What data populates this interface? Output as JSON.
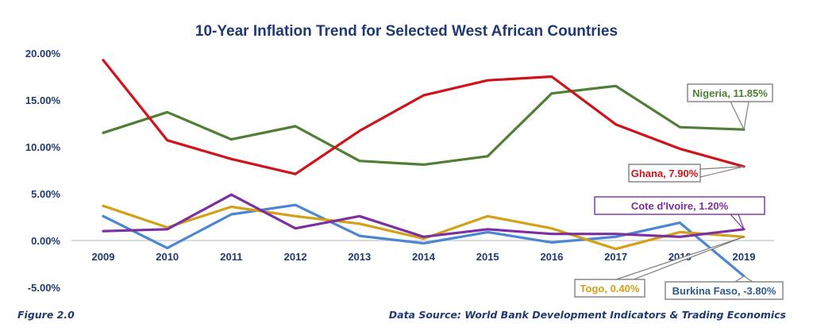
{
  "chart_data": {
    "type": "line",
    "title": "10-Year Inflation Trend for Selected West African Countries",
    "xlabel": "",
    "ylabel": "",
    "categories": [
      "2009",
      "2010",
      "2011",
      "2012",
      "2013",
      "2014",
      "2015",
      "2016",
      "2017",
      "2018",
      "2019"
    ],
    "ylim": [
      -5,
      20
    ],
    "yticks": [
      20,
      15,
      10,
      5,
      0,
      -5
    ],
    "ytick_labels": [
      "20.00%",
      "15.00%",
      "10.00%",
      "5.00%",
      "0.00%",
      "-5.00%"
    ],
    "grid": false,
    "legend": "none (data callouts at last point)",
    "series": [
      {
        "name": "Ghana",
        "color": "#d0121b",
        "values": [
          19.25,
          10.7,
          8.7,
          7.1,
          11.7,
          15.5,
          17.1,
          17.5,
          12.4,
          9.8,
          7.9
        ],
        "callout": "Ghana, 7.90%",
        "callout_border": "#7f7f7f"
      },
      {
        "name": "Nigeria",
        "color": "#4e7f34",
        "values": [
          11.5,
          13.7,
          10.8,
          12.2,
          8.5,
          8.1,
          9.0,
          15.7,
          16.5,
          12.1,
          11.85
        ],
        "callout": "Nigeria, 11.85%",
        "callout_border": "#7f7f7f"
      },
      {
        "name": "Cote d'Ivoire",
        "color": "#7b2fa0",
        "values": [
          1.0,
          1.2,
          4.9,
          1.3,
          2.6,
          0.4,
          1.2,
          0.7,
          0.7,
          0.4,
          1.2
        ],
        "callout": "Cote d'Ivoire, 1.20%",
        "callout_border": "#7b2fa0"
      },
      {
        "name": "Togo",
        "color": "#d4a017",
        "values": [
          3.7,
          1.4,
          3.6,
          2.6,
          1.8,
          0.2,
          2.6,
          1.3,
          -0.9,
          0.9,
          0.4
        ],
        "callout": "Togo, 0.40%",
        "callout_border": "#7f7f7f"
      },
      {
        "name": "Burkina Faso",
        "color": "#4a86d4",
        "values": [
          2.6,
          -0.8,
          2.8,
          3.8,
          0.5,
          -0.3,
          0.9,
          -0.2,
          0.4,
          1.9,
          -3.8
        ],
        "callout": "Burkina Faso, -3.80%",
        "callout_border": "#7f7f7f",
        "callout_text_color": "#2e5a8a"
      }
    ]
  },
  "footer": {
    "figure_label": "Figure 2.0",
    "source": "Data Source: World Bank Development Indicators & Trading Economics"
  }
}
